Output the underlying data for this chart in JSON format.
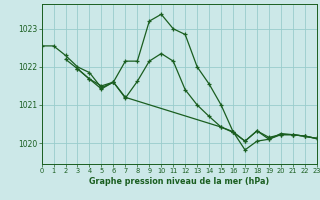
{
  "title": "Graphe pression niveau de la mer (hPa)",
  "bg_color": "#cce8e8",
  "grid_color": "#99cccc",
  "line_color": "#1a5e20",
  "xlim": [
    0,
    23
  ],
  "ylim": [
    1019.45,
    1023.65
  ],
  "yticks": [
    1020,
    1021,
    1022,
    1023
  ],
  "xticks": [
    0,
    1,
    2,
    3,
    4,
    5,
    6,
    7,
    8,
    9,
    10,
    11,
    12,
    13,
    14,
    15,
    16,
    17,
    18,
    19,
    20,
    21,
    22,
    23
  ],
  "series": [
    {
      "x": [
        0,
        1,
        2,
        3,
        4,
        5,
        6,
        7,
        8,
        9,
        10,
        11,
        12,
        13,
        14,
        15,
        16,
        17,
        18,
        19,
        20,
        21,
        22,
        23
      ],
      "y": [
        1022.55,
        1022.55,
        1022.3,
        1022.0,
        1021.85,
        1021.45,
        1021.6,
        1022.15,
        1022.15,
        1023.2,
        1023.38,
        1023.0,
        1022.85,
        1022.0,
        1021.55,
        1021.0,
        1020.3,
        1019.82,
        1020.05,
        1020.1,
        1020.25,
        1020.22,
        1020.18,
        1020.12
      ]
    },
    {
      "x": [
        2,
        3,
        4,
        5,
        6,
        7,
        8,
        9,
        10,
        11,
        12,
        13,
        14,
        15,
        16,
        17,
        18,
        19,
        20,
        21,
        22,
        23
      ],
      "y": [
        1022.2,
        1021.95,
        1021.68,
        1021.42,
        1021.6,
        1021.18,
        1021.62,
        1022.15,
        1022.35,
        1022.15,
        1021.4,
        1021.0,
        1020.7,
        1020.42,
        1020.28,
        1020.05,
        1020.32,
        1020.15,
        1020.22,
        1020.22,
        1020.18,
        1020.12
      ]
    },
    {
      "x": [
        3,
        4,
        5,
        6,
        7,
        15,
        16,
        17,
        18,
        19,
        20,
        21,
        22,
        23
      ],
      "y": [
        1021.95,
        1021.68,
        1021.5,
        1021.6,
        1021.2,
        1020.42,
        1020.3,
        1020.05,
        1020.32,
        1020.1,
        1020.22,
        1020.22,
        1020.18,
        1020.12
      ]
    }
  ]
}
